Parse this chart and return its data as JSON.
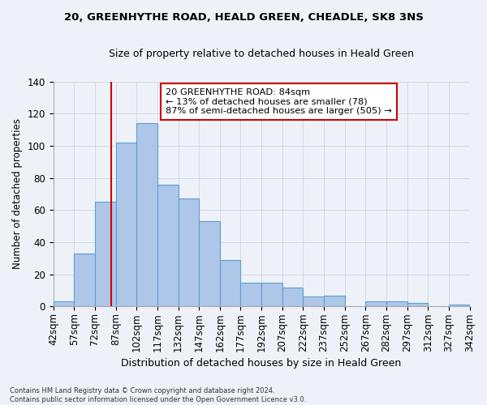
{
  "title1": "20, GREENHYTHE ROAD, HEALD GREEN, CHEADLE, SK8 3NS",
  "title2": "Size of property relative to detached houses in Heald Green",
  "xlabel": "Distribution of detached houses by size in Heald Green",
  "ylabel": "Number of detached properties",
  "footnote": "Contains HM Land Registry data © Crown copyright and database right 2024.\nContains public sector information licensed under the Open Government Licence v3.0.",
  "bar_left_edges": [
    42,
    57,
    72,
    87,
    102,
    117,
    132,
    147,
    162,
    177,
    192,
    207,
    222,
    237,
    252,
    267,
    282,
    297,
    312,
    327
  ],
  "bar_heights": [
    3,
    33,
    65,
    102,
    114,
    76,
    67,
    53,
    29,
    15,
    15,
    12,
    6,
    7,
    0,
    3,
    3,
    2,
    0,
    1
  ],
  "bin_width": 15,
  "bar_color": "#aec6e8",
  "bar_edge_color": "#5a9fd4",
  "vline_x": 84,
  "vline_color": "#cc0000",
  "annotation_text": "20 GREENHYTHE ROAD: 84sqm\n← 13% of detached houses are smaller (78)\n87% of semi-detached houses are larger (505) →",
  "annotation_box_color": "#ffffff",
  "annotation_box_edgecolor": "#cc0000",
  "xlim": [
    42,
    342
  ],
  "ylim": [
    0,
    140
  ],
  "yticks": [
    0,
    20,
    40,
    60,
    80,
    100,
    120,
    140
  ],
  "xtick_labels": [
    "42sqm",
    "57sqm",
    "72sqm",
    "87sqm",
    "102sqm",
    "117sqm",
    "132sqm",
    "147sqm",
    "162sqm",
    "177sqm",
    "192sqm",
    "207sqm",
    "222sqm",
    "237sqm",
    "252sqm",
    "267sqm",
    "282sqm",
    "297sqm",
    "312sqm",
    "327sqm",
    "342sqm"
  ],
  "grid_color": "#d0d8e8",
  "bg_color": "#eef2f8"
}
